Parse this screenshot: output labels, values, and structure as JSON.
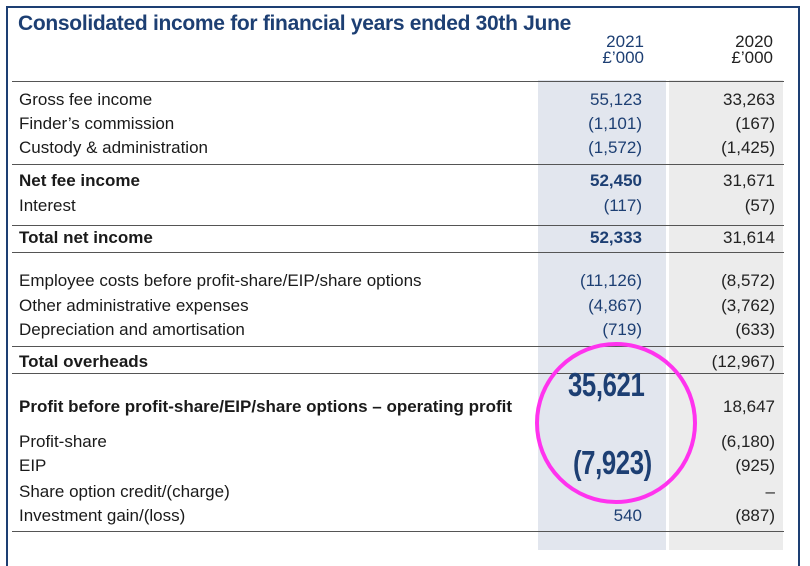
{
  "title": "Consolidated income for financial years ended 30th June",
  "columns": {
    "c2021": {
      "year": "2021",
      "unit": "£’000"
    },
    "c2020": {
      "year": "2020",
      "unit": "£’000"
    }
  },
  "rows": [
    {
      "label": "Gross fee income",
      "v2021": "55,123",
      "v2020": "33,263"
    },
    {
      "label": "Finder’s commission",
      "v2021": "(1,101)",
      "v2020": "(167)"
    },
    {
      "label": "Custody & administration",
      "v2021": "(1,572)",
      "v2020": "(1,425)"
    },
    {
      "label": "Net fee income",
      "v2021": "52,450",
      "v2020": "31,671"
    },
    {
      "label": "Interest",
      "v2021": "(117)",
      "v2020": "(57)"
    },
    {
      "label": "Total net income",
      "v2021": "52,333",
      "v2020": "31,614"
    },
    {
      "label": "Employee costs before profit-share/EIP/share options",
      "v2021": "(11,126)",
      "v2020": "(8,572)"
    },
    {
      "label": "Other administrative expenses",
      "v2021": "(4,867)",
      "v2020": "(3,762)"
    },
    {
      "label": "Depreciation and amortisation",
      "v2021": "(719)",
      "v2020": "(633)"
    },
    {
      "label": "Total overheads",
      "v2021": "",
      "v2020": "(12,967)"
    },
    {
      "label": "Profit before profit-share/EIP/share options – operating profit",
      "v2021": "",
      "v2020": "18,647"
    },
    {
      "label": "Profit-share",
      "v2021": "",
      "v2020": "(6,180)"
    },
    {
      "label": "EIP",
      "v2021": "",
      "v2020": "(925)"
    },
    {
      "label": "Share option credit/(charge)",
      "v2021": "",
      "v2020": "–"
    },
    {
      "label": "Investment gain/(loss)",
      "v2021": "540",
      "v2020": "(887)"
    }
  ],
  "annotation": {
    "highlight_value_1": "35,621",
    "highlight_value_2": "(7,923)",
    "color": "#ff33ee"
  }
}
